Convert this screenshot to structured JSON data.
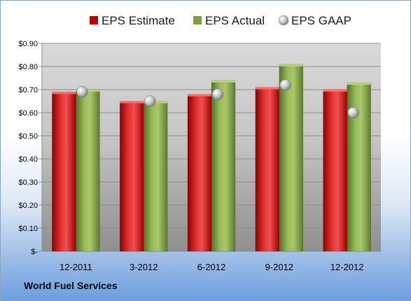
{
  "footer_label": "World Fuel Services",
  "chart_data": {
    "type": "bar",
    "categories": [
      "12-2011",
      "3-2012",
      "6-2012",
      "9-2012",
      "12-2012"
    ],
    "series": [
      {
        "name": "EPS Estimate",
        "kind": "bar",
        "color": "#c00000",
        "values": [
          0.69,
          0.65,
          0.68,
          0.71,
          0.7
        ]
      },
      {
        "name": "EPS Actual",
        "kind": "bar",
        "color": "#7f9f3f",
        "values": [
          0.7,
          0.65,
          0.74,
          0.81,
          0.73
        ]
      },
      {
        "name": "EPS GAAP",
        "kind": "marker",
        "color": "#b0b0b0",
        "values": [
          0.69,
          0.65,
          0.68,
          0.72,
          0.6
        ]
      }
    ],
    "ylim": [
      0,
      0.9
    ],
    "yticks": [
      0,
      0.1,
      0.2,
      0.3,
      0.4,
      0.5,
      0.6,
      0.7,
      0.8,
      0.9
    ],
    "ytick_labels": [
      "$-",
      "$0.10",
      "$0.20",
      "$0.30",
      "$0.40",
      "$0.50",
      "$0.60",
      "$0.70",
      "$0.80",
      "$0.90"
    ],
    "grid": true,
    "legend_position": "top"
  }
}
